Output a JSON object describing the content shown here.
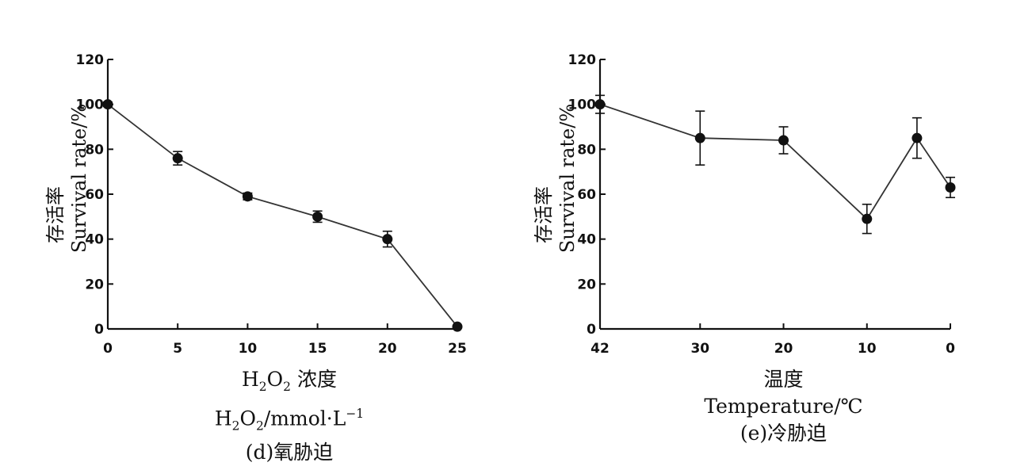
{
  "chart_data": [
    {
      "id": "d",
      "type": "line",
      "ylabel_cn": "存活率",
      "ylabel_en": "Survival  rate/%",
      "xlabel_cn": "H₂O₂ 浓度",
      "xlabel_en": "H₂O₂/mmol·L⁻¹",
      "caption": "(d)氧胁迫",
      "xlim": [
        0,
        25
      ],
      "ylim": [
        0,
        120
      ],
      "xticks": [
        0,
        5,
        10,
        15,
        20,
        25
      ],
      "yticks": [
        0,
        20,
        40,
        60,
        80,
        100,
        120
      ],
      "series": [
        {
          "x": [
            0,
            5,
            10,
            15,
            20,
            25
          ],
          "y": [
            100,
            76,
            59,
            50,
            40,
            1
          ],
          "err": [
            1,
            3,
            1.5,
            2.5,
            3.5,
            0.5
          ]
        }
      ]
    },
    {
      "id": "e",
      "type": "line",
      "ylabel_cn": "存活率",
      "ylabel_en": "Survival  rate/%",
      "xlabel_cn": "温度",
      "xlabel_en": "Temperature/℃",
      "caption": "(e)冷胁迫",
      "xlim": [
        42,
        0
      ],
      "ylim": [
        0,
        120
      ],
      "xticks": [
        42,
        30,
        20,
        10,
        0
      ],
      "yticks": [
        0,
        20,
        40,
        60,
        80,
        100,
        120
      ],
      "series": [
        {
          "x": [
            42,
            30,
            20,
            10,
            4,
            0
          ],
          "y": [
            100,
            85,
            84,
            49,
            85,
            63
          ],
          "err": [
            4,
            12,
            6,
            6.5,
            9,
            4.5
          ]
        }
      ]
    }
  ]
}
